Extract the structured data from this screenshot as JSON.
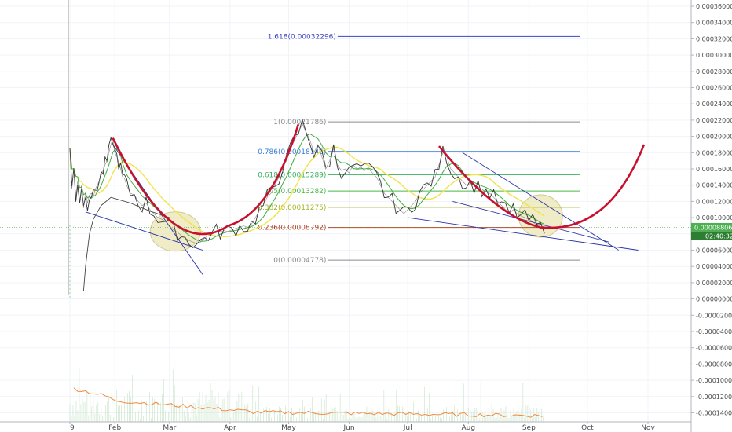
{
  "chart_data": {
    "type": "line",
    "title": "",
    "xlabel": "",
    "ylabel": "",
    "y_scale": "linear",
    "ylim": [
      -0.00015,
      0.00037
    ],
    "grid": true,
    "legend": "none",
    "y_ticks": [
      0.00036,
      0.00034,
      0.00032,
      0.0003,
      0.00028,
      0.00026,
      0.00024,
      0.00022,
      0.0002,
      0.00018,
      0.00016,
      0.00014,
      0.00012,
      0.0001,
      8e-05,
      6e-05,
      4e-05,
      2e-05,
      0.0,
      -2e-05,
      -4e-05,
      -6e-05,
      -8e-05,
      -0.0001,
      -0.00012,
      -0.00014
    ],
    "y_tick_labels": [
      "0.00036000",
      "0.00034000",
      "0.00032000",
      "0.00030000",
      "0.00028000",
      "0.00026000",
      "0.00024000",
      "0.00022000",
      "0.00020000",
      "0.00018000",
      "0.00016000",
      "0.00014000",
      "0.00012000",
      "0.00010000",
      "0.00008000",
      "0.00006000",
      "0.00004000",
      "0.00002000",
      "0.00000000",
      "-0.00002000",
      "-0.00004000",
      "-0.00006000",
      "-0.00008000",
      "-0.00010000",
      "-0.00012000",
      "-0.00014000"
    ],
    "x_ticks": [
      "9",
      "Feb",
      "Mar",
      "Apr",
      "May",
      "Jun",
      "Jul",
      "Aug",
      "Sep",
      "Oct",
      "Nov"
    ],
    "x_tick_days": [
      9,
      32,
      60,
      91,
      121,
      152,
      182,
      213,
      244,
      274,
      305
    ],
    "xlim_days": [
      0,
      320
    ],
    "price_series": [
      [
        9,
        0.000185
      ],
      [
        10,
        0.000135
      ],
      [
        11,
        0.00016
      ],
      [
        12,
        0.000125
      ],
      [
        13,
        0.000145
      ],
      [
        14,
        0.00012
      ],
      [
        15,
        0.00014
      ],
      [
        16,
        0.000112
      ],
      [
        17,
        0.000132
      ],
      [
        18,
        0.000118
      ],
      [
        19,
        0.000128
      ],
      [
        20,
        0.00013
      ],
      [
        21,
        0.000125
      ],
      [
        22,
        0.000135
      ],
      [
        23,
        0.00014
      ],
      [
        24,
        0.000145
      ],
      [
        25,
        0.000152
      ],
      [
        26,
        0.000158
      ],
      [
        27,
        0.000165
      ],
      [
        28,
        0.00017
      ],
      [
        29,
        0.00018
      ],
      [
        30,
        0.00019
      ],
      [
        31,
        0.000198
      ],
      [
        32,
        0.00018
      ],
      [
        33,
        0.000175
      ],
      [
        34,
        0.000168
      ],
      [
        35,
        0.00016
      ],
      [
        36,
        0.00015
      ],
      [
        37,
        0.000148
      ],
      [
        38,
        0.00014
      ],
      [
        40,
        0.00013
      ],
      [
        42,
        0.000128
      ],
      [
        44,
        0.00012
      ],
      [
        46,
        0.000115
      ],
      [
        48,
        0.000118
      ],
      [
        50,
        0.00011
      ],
      [
        52,
        0.000105
      ],
      [
        54,
        0.0001
      ],
      [
        56,
        9.8e-05
      ],
      [
        58,
        9.5e-05
      ],
      [
        60,
        9e-05
      ],
      [
        62,
        8.5e-05
      ],
      [
        64,
        8.2e-05
      ],
      [
        66,
        7.8e-05
      ],
      [
        68,
        7.5e-05
      ],
      [
        70,
        7.2e-05
      ],
      [
        72,
        7e-05
      ],
      [
        74,
        6.8e-05
      ],
      [
        76,
        7e-05
      ],
      [
        78,
        7.5e-05
      ],
      [
        80,
        7.8e-05
      ],
      [
        82,
        8e-05
      ],
      [
        84,
        8.3e-05
      ],
      [
        86,
        8.2e-05
      ],
      [
        88,
        8.4e-05
      ],
      [
        90,
        8.3e-05
      ],
      [
        92,
        8.5e-05
      ],
      [
        94,
        8.7e-05
      ],
      [
        96,
        8.8e-05
      ],
      [
        98,
        9e-05
      ],
      [
        100,
        8.8e-05
      ],
      [
        102,
        9.2e-05
      ],
      [
        104,
        0.0001
      ],
      [
        106,
        0.000108
      ],
      [
        108,
        0.000115
      ],
      [
        110,
        0.000125
      ],
      [
        112,
        0.00013
      ],
      [
        114,
        0.00014
      ],
      [
        116,
        0.00015
      ],
      [
        118,
        0.000165
      ],
      [
        120,
        0.00017
      ],
      [
        122,
        0.000185
      ],
      [
        124,
        0.000195
      ],
      [
        126,
        0.000205
      ],
      [
        128,
        0.000215
      ],
      [
        130,
        0.000205
      ],
      [
        132,
        0.000195
      ],
      [
        134,
        0.00018
      ],
      [
        136,
        0.00019
      ],
      [
        138,
        0.000175
      ],
      [
        140,
        0.00016
      ],
      [
        142,
        0.00017
      ],
      [
        144,
        0.000185
      ],
      [
        146,
        0.000165
      ],
      [
        148,
        0.000158
      ],
      [
        150,
        0.00016
      ],
      [
        152,
        0.000155
      ],
      [
        154,
        0.000165
      ],
      [
        156,
        0.00016
      ],
      [
        158,
        0.000162
      ],
      [
        160,
        0.000158
      ],
      [
        162,
        0.00016
      ],
      [
        164,
        0.000155
      ],
      [
        166,
        0.00015
      ],
      [
        168,
        0.00014
      ],
      [
        170,
        0.00013
      ],
      [
        172,
        0.000125
      ],
      [
        174,
        0.00012
      ],
      [
        176,
        0.000115
      ],
      [
        178,
        0.00011
      ],
      [
        180,
        0.000105
      ],
      [
        182,
        0.00011
      ],
      [
        184,
        0.000115
      ],
      [
        186,
        0.00012
      ],
      [
        188,
        0.00013
      ],
      [
        190,
        0.000135
      ],
      [
        192,
        0.00014
      ],
      [
        194,
        0.000145
      ],
      [
        196,
        0.00015
      ],
      [
        198,
        0.000165
      ],
      [
        200,
        0.00018
      ],
      [
        202,
        0.000175
      ],
      [
        204,
        0.00016
      ],
      [
        206,
        0.000155
      ],
      [
        208,
        0.00015
      ],
      [
        210,
        0.000145
      ],
      [
        212,
        0.00014
      ],
      [
        214,
        0.000142
      ],
      [
        216,
        0.00014
      ],
      [
        218,
        0.000138
      ],
      [
        220,
        0.000135
      ],
      [
        222,
        0.000132
      ],
      [
        224,
        0.00013
      ],
      [
        226,
        0.000125
      ],
      [
        228,
        0.00012
      ],
      [
        230,
        0.000115
      ],
      [
        232,
        0.00011
      ],
      [
        234,
        0.000105
      ],
      [
        236,
        0.00011
      ],
      [
        238,
        0.000105
      ],
      [
        240,
        0.000102
      ],
      [
        242,
        0.0001
      ],
      [
        244,
        9.8e-05
      ],
      [
        246,
        9.5e-05
      ],
      [
        248,
        9e-05
      ],
      [
        250,
        8.7e-05
      ],
      [
        252,
        9e-05
      ]
    ],
    "fib_levels": [
      {
        "label": "1.618(0.00032296)",
        "value": 0.00032296,
        "color": "#3c44c4"
      },
      {
        "label": "1(0.00021786)",
        "value": 0.00021786,
        "color": "#8a8a8a"
      },
      {
        "label": "0.786(0.00018146)",
        "value": 0.00018146,
        "color": "#3a7fd5"
      },
      {
        "label": "0.618(0.00015289)",
        "value": 0.00015289,
        "color": "#38b060"
      },
      {
        "label": "0.5(0.00013282)",
        "value": 0.00013282,
        "color": "#4ab84a"
      },
      {
        "label": "0.382(0.00011275)",
        "value": 0.00011275,
        "color": "#a5b52a"
      },
      {
        "label": "0.236(0.00008792)",
        "value": 8.792e-05,
        "color": "#c0392b"
      },
      {
        "label": "0(0.00004778)",
        "value": 4.778e-05,
        "color": "#8a8a8a"
      }
    ],
    "fib_start_day": 125,
    "fib_end_day": 270,
    "fib_ext_start_day": 126,
    "last_price": {
      "label": "0.00008806",
      "value": 8.806e-05,
      "color": "#4caf50"
    },
    "countdown": {
      "label": "02:40:32",
      "color": "#2e7d32"
    },
    "colors": {
      "arc": "#c8102e",
      "channel": "#2b35a8",
      "price": "#333333",
      "ma_yellow": "#f2e34a",
      "ma_green": "#3fae3f",
      "volume_line": "#f08a3c",
      "ellipse": "#e9e4b0"
    }
  }
}
